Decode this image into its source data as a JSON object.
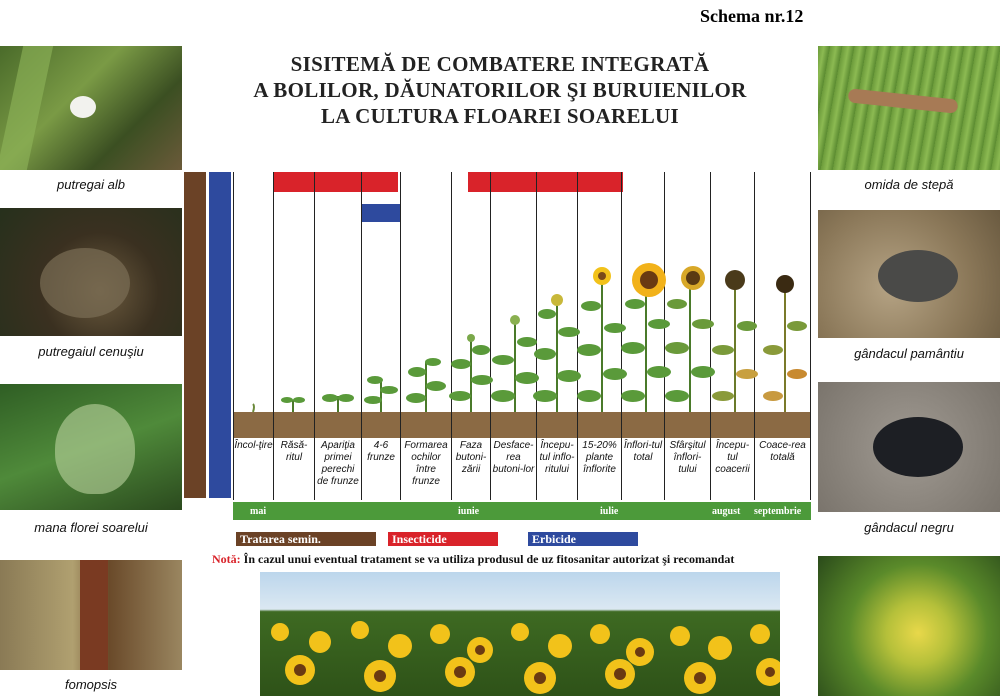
{
  "schema_label": "Schema nr.12",
  "title": {
    "line1": "SISITEMĂ DE COMBATERE INTEGRATĂ",
    "line2": "A BOLILOR, DĂUNATORILOR ŞI BURUIENILOR",
    "line3": "LA CULTURA FLOAREI SOARELUI"
  },
  "left_photos": [
    {
      "caption": "putregai alb"
    },
    {
      "caption": "putregaiul cenuşiu"
    },
    {
      "caption": "mana florei soarelui"
    },
    {
      "caption": "fomopsis"
    }
  ],
  "right_photos": [
    {
      "caption": "omida de stepă"
    },
    {
      "caption": "gândacul pamântiu"
    },
    {
      "caption": "gândacul negru"
    },
    {
      "caption": ""
    }
  ],
  "stages": [
    "Încol-ţire",
    "Răsă-ritul",
    "Apariţia primei perechi de frunze",
    "4-6 frunze",
    "Formarea ochilor între frunze",
    "Faza butoni-zării",
    "Desface-rea butoni-lor",
    "Începu-tul inflo-ritului",
    "15-20% plante înflorite",
    "Înflori-tul total",
    "Sfârşitul înflori-tului",
    "Începu-tul coacerii",
    "Coace-rea totală"
  ],
  "months": [
    "mai",
    "iunie",
    "iulie",
    "august",
    "septembrie"
  ],
  "legend": {
    "seed": {
      "label": "Tratarea semin.",
      "color": "#6b4226"
    },
    "insecticide": {
      "label": "Insecticide",
      "color": "#d9232a"
    },
    "herbicide": {
      "label": "Erbicide",
      "color": "#2e4a9e"
    }
  },
  "note": {
    "prefix": "Notă:",
    "text": "În cazul unui eventual tratament se va utiliza produsul de uz fitosanitar autorizat şi recomandat"
  }
}
